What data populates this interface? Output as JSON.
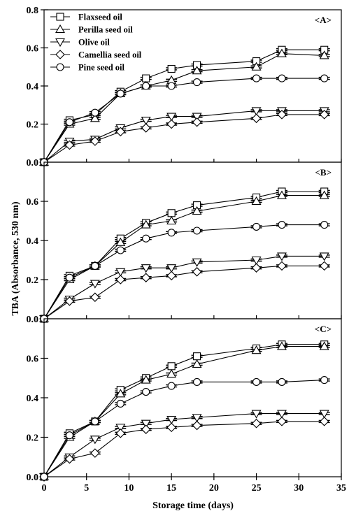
{
  "chart_data": {
    "type": "line",
    "xlabel": "Storage time (days)",
    "ylabel": "TBA (Absorbance, 530 nm)",
    "xlim": [
      0,
      35
    ],
    "xticks": [
      0,
      5,
      10,
      15,
      20,
      25,
      30,
      35
    ],
    "ylim": [
      0,
      0.8
    ],
    "yticks_top": [
      0.0,
      0.2,
      0.4,
      0.6,
      0.8
    ],
    "yticks_other": [
      0.0,
      0.2,
      0.4,
      0.6
    ],
    "grid": false,
    "legend_position": "top-left",
    "x": [
      0,
      3,
      6,
      9,
      12,
      15,
      18,
      25,
      28,
      33
    ],
    "series_styles": [
      {
        "name": "Flaxseed oil",
        "marker": "square"
      },
      {
        "name": "Perilla seed oil",
        "marker": "triangle-up"
      },
      {
        "name": "Olive oil",
        "marker": "triangle-down"
      },
      {
        "name": "Camellia seed oil",
        "marker": "diamond"
      },
      {
        "name": "Pine seed oil",
        "marker": "circle"
      }
    ],
    "panels": [
      {
        "label": "<A>",
        "series": [
          {
            "name": "Flaxseed oil",
            "values": [
              0.0,
              0.22,
              0.25,
              0.37,
              0.44,
              0.49,
              0.51,
              0.53,
              0.59,
              0.59
            ]
          },
          {
            "name": "Perilla seed oil",
            "values": [
              0.0,
              0.2,
              0.23,
              0.36,
              0.4,
              0.43,
              0.48,
              0.5,
              0.57,
              0.56
            ]
          },
          {
            "name": "Olive oil",
            "values": [
              0.0,
              0.11,
              0.12,
              0.18,
              0.22,
              0.24,
              0.24,
              0.27,
              0.27,
              0.27
            ]
          },
          {
            "name": "Camellia seed oil",
            "values": [
              0.0,
              0.09,
              0.11,
              0.16,
              0.18,
              0.2,
              0.21,
              0.23,
              0.25,
              0.25
            ]
          },
          {
            "name": "Pine seed oil",
            "values": [
              0.0,
              0.21,
              0.26,
              0.36,
              0.4,
              0.4,
              0.42,
              0.44,
              0.44,
              0.44
            ]
          }
        ]
      },
      {
        "label": "<B>",
        "series": [
          {
            "name": "Flaxseed oil",
            "values": [
              0.0,
              0.22,
              0.27,
              0.41,
              0.49,
              0.54,
              0.58,
              0.62,
              0.65,
              0.65
            ]
          },
          {
            "name": "Perilla seed oil",
            "values": [
              0.0,
              0.2,
              0.27,
              0.39,
              0.48,
              0.5,
              0.55,
              0.6,
              0.63,
              0.63
            ]
          },
          {
            "name": "Olive oil",
            "values": [
              0.0,
              0.1,
              0.18,
              0.24,
              0.26,
              0.26,
              0.29,
              0.3,
              0.32,
              0.32
            ]
          },
          {
            "name": "Camellia seed oil",
            "values": [
              0.0,
              0.09,
              0.11,
              0.2,
              0.21,
              0.22,
              0.24,
              0.26,
              0.27,
              0.27
            ]
          },
          {
            "name": "Pine seed oil",
            "values": [
              0.0,
              0.21,
              0.27,
              0.35,
              0.41,
              0.44,
              0.45,
              0.47,
              0.48,
              0.48
            ]
          }
        ]
      },
      {
        "label": "<C>",
        "series": [
          {
            "name": "Flaxseed oil",
            "values": [
              0.0,
              0.22,
              0.28,
              0.44,
              0.5,
              0.56,
              0.61,
              0.65,
              0.67,
              0.67
            ]
          },
          {
            "name": "Perilla seed oil",
            "values": [
              0.0,
              0.2,
              0.28,
              0.42,
              0.49,
              0.52,
              0.57,
              0.64,
              0.66,
              0.66
            ]
          },
          {
            "name": "Olive oil",
            "values": [
              0.0,
              0.1,
              0.19,
              0.25,
              0.27,
              0.29,
              0.3,
              0.32,
              0.32,
              0.32
            ]
          },
          {
            "name": "Camellia seed oil",
            "values": [
              0.0,
              0.09,
              0.12,
              0.22,
              0.24,
              0.25,
              0.26,
              0.27,
              0.28,
              0.28
            ]
          },
          {
            "name": "Pine seed oil",
            "values": [
              0.0,
              0.21,
              0.28,
              0.37,
              0.43,
              0.46,
              0.48,
              0.48,
              0.48,
              0.49
            ]
          }
        ]
      }
    ]
  }
}
